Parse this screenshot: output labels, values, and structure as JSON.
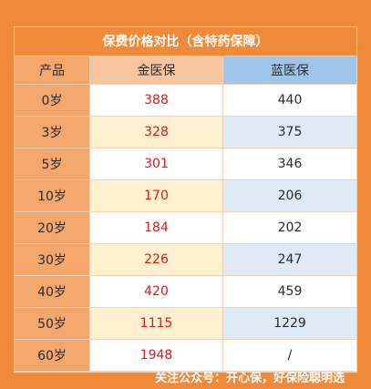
{
  "title": "保费价格对比（含特药保障）",
  "headers": {
    "product": "产品",
    "gold": "金医保",
    "blue": "蓝医保"
  },
  "rows": [
    {
      "age": "0岁",
      "gold": "388",
      "blue": "440"
    },
    {
      "age": "3岁",
      "gold": "328",
      "blue": "375"
    },
    {
      "age": "5岁",
      "gold": "301",
      "blue": "346"
    },
    {
      "age": "10岁",
      "gold": "170",
      "blue": "206"
    },
    {
      "age": "20岁",
      "gold": "184",
      "blue": "202"
    },
    {
      "age": "30岁",
      "gold": "226",
      "blue": "247"
    },
    {
      "age": "40岁",
      "gold": "420",
      "blue": "459"
    },
    {
      "age": "50岁",
      "gold": "1115",
      "blue": "1229"
    },
    {
      "age": "60岁",
      "gold": "1948",
      "blue": "/"
    }
  ],
  "footer": "关注公众号：开心保，好保险聪明选",
  "colors": {
    "background": "#ef8a3a",
    "gold_text": "#d61c1c",
    "gold_cream": "#fff0cf",
    "blue_header": "#9ec5ea",
    "blue_light": "#deebf7"
  }
}
